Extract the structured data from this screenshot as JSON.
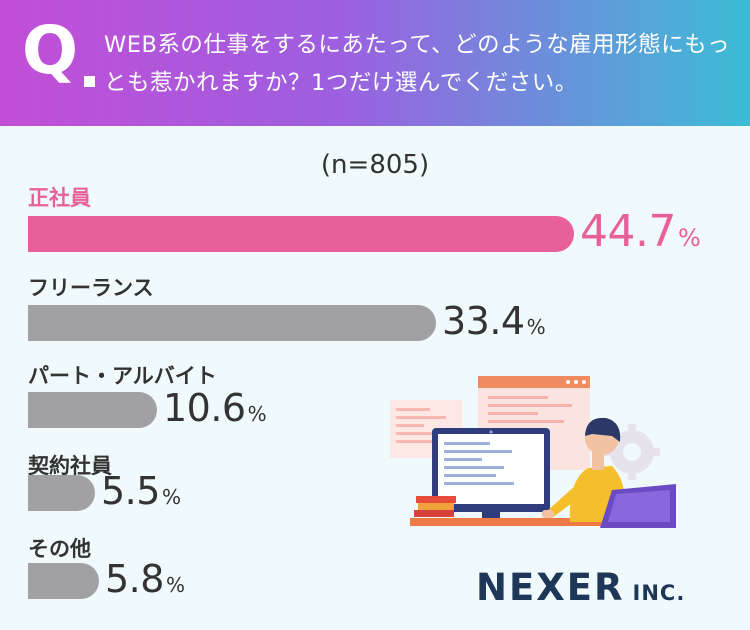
{
  "header": {
    "q_mark": "Q",
    "question": "WEB系の仕事をするにあたって、どのような雇用形態にもっとも惹かれますか？1つだけ選んでください。"
  },
  "sample_size": "(n=805)",
  "chart_data": {
    "type": "bar",
    "orientation": "horizontal",
    "categories": [
      "正社員",
      "フリーランス",
      "パート・アルバイト",
      "契約社員",
      "その他"
    ],
    "values": [
      44.7,
      33.4,
      10.6,
      5.5,
      5.8
    ],
    "value_labels": [
      "44.7",
      "33.4",
      "10.6",
      "5.5",
      "5.8"
    ],
    "unit": "%",
    "highlight_index": 0,
    "colors": {
      "highlight": "#e8609a",
      "default": "#a1a1a5"
    }
  },
  "logo": {
    "main": "NEXER",
    "sub": "INC."
  }
}
